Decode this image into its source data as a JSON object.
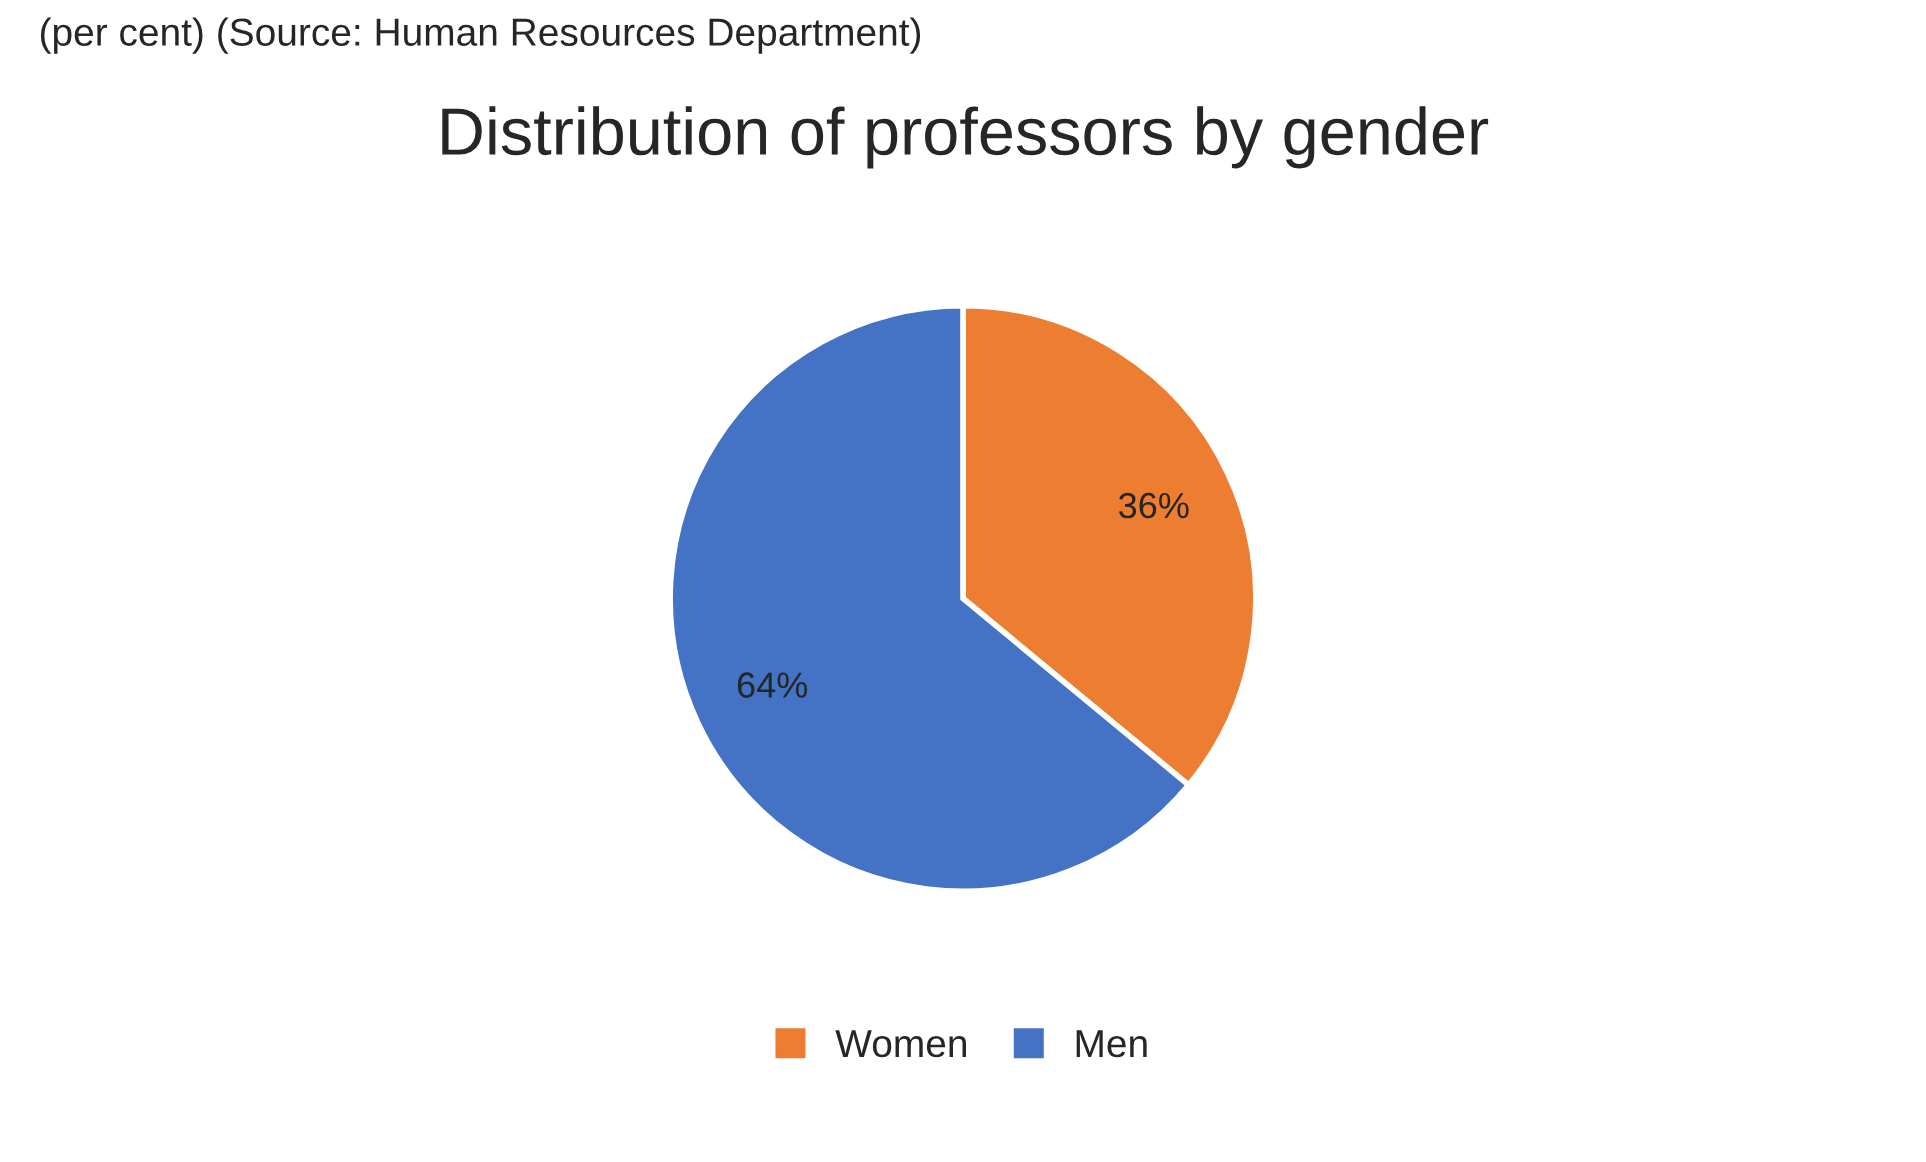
{
  "chart_data": {
    "type": "pie",
    "title": "Distribution of professors by gender",
    "annotations": [
      "(per cent) (Source: Human Resources Department)"
    ],
    "categories": [
      "Women",
      "Men"
    ],
    "values": [
      36,
      64
    ],
    "colors": [
      "#ed7d31",
      "#4472c4"
    ],
    "value_labels": [
      "36%",
      "64%"
    ],
    "legend": "bottom"
  }
}
